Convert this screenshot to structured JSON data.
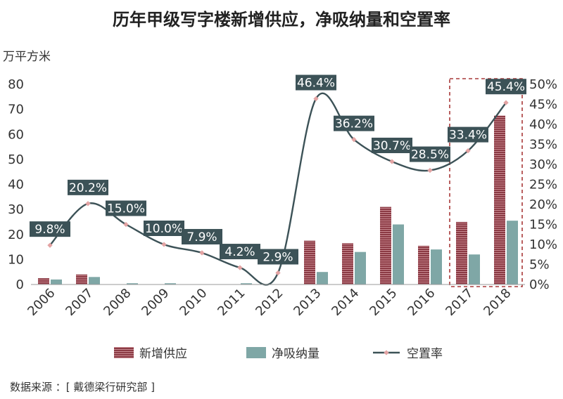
{
  "title": "历年甲级写字楼新增供应，净吸纳量和空置率",
  "y_unit": "万平方米",
  "source": "数据来源 ：[ 戴德梁行研究部 ]",
  "colors": {
    "supply": "#8b3a44",
    "absorption": "#7fa7a6",
    "vacancy_line": "#3c5257",
    "vacancy_marker": "#e3a3a3",
    "label_bg": "#3c5257",
    "highlight_box": "#a83838"
  },
  "chart_data": {
    "type": "bar+line",
    "title": "历年甲级写字楼新增供应，净吸纳量和空置率",
    "ylabel": "万平方米",
    "categories": [
      "2006",
      "2007",
      "2008",
      "2009",
      "2010",
      "2011",
      "2012",
      "2013",
      "2014",
      "2015",
      "2016",
      "2017",
      "2018"
    ],
    "series": [
      {
        "name": "新增供应",
        "type": "bar",
        "axis": "left",
        "values": [
          2.5,
          4,
          0,
          0,
          0,
          0,
          0,
          17.5,
          16.5,
          31,
          15.5,
          25,
          67.5
        ]
      },
      {
        "name": "净吸纳量",
        "type": "bar",
        "axis": "left",
        "values": [
          2,
          3,
          0.5,
          0.5,
          0,
          0.5,
          0,
          5,
          13,
          24,
          14,
          12,
          25.5
        ]
      },
      {
        "name": "空置率",
        "type": "line",
        "axis": "right",
        "values": [
          9.8,
          20.2,
          15.0,
          10.0,
          7.9,
          4.2,
          2.9,
          46.4,
          36.2,
          30.7,
          28.5,
          33.4,
          45.4
        ],
        "labels": [
          "9.8%",
          "20.2%",
          "15.0%",
          "10.0%",
          "7.9%",
          "4.2%",
          "2.9%",
          "46.4%",
          "36.2%",
          "30.7%",
          "28.5%",
          "33.4%",
          "45.4%"
        ]
      }
    ],
    "ylim_left": [
      0,
      80
    ],
    "yticks_left": [
      "0",
      "10",
      "20",
      "30",
      "40",
      "50",
      "60",
      "70",
      "80"
    ],
    "ylim_right": [
      0,
      50
    ],
    "yticks_right": [
      "0%",
      "5%",
      "10%",
      "15%",
      "20%",
      "25%",
      "30%",
      "35%",
      "40%",
      "45%",
      "50%"
    ],
    "highlight": [
      "2017",
      "2018"
    ],
    "legend": [
      "新增供应",
      "净吸纳量",
      "空置率"
    ],
    "legend_position": "bottom",
    "grid": false
  }
}
